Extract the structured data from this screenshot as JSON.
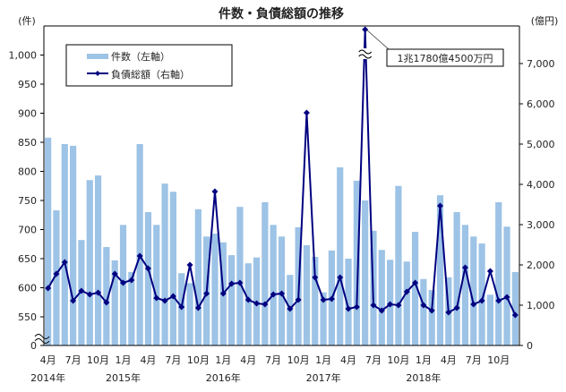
{
  "chart_data": {
    "type": "bar+line",
    "title": "件数・負債総額の推移",
    "left_axis_unit": "(件)",
    "right_axis_unit": "(億円)",
    "left_axis": {
      "ticks": [
        "0",
        "550",
        "600",
        "650",
        "700",
        "750",
        "800",
        "850",
        "900",
        "950",
        "1,000"
      ],
      "ylim": [
        550,
        1050
      ],
      "break": true
    },
    "right_axis": {
      "ticks": [
        "0",
        "1,000",
        "2,000",
        "3,000",
        "4,000",
        "5,000",
        "6,000",
        "7,000"
      ],
      "ylim": [
        0,
        7900
      ]
    },
    "legend": {
      "placement": "top-left",
      "entries": [
        "件数（左軸）",
        "負債総額（右軸）"
      ]
    },
    "annotation": "1兆1780億4500万円",
    "x_tick_labels": [
      "4月",
      "7月",
      "10月",
      "1月",
      "4月",
      "7月",
      "10月",
      "1月",
      "4月",
      "7月",
      "10月",
      "1月",
      "4月",
      "7月",
      "10月",
      "1月",
      "4月",
      "7月",
      "10月"
    ],
    "year_labels": [
      "2014年",
      "2015年",
      "2016年",
      "2017年",
      "2018年"
    ],
    "months": [
      "2014-04",
      "2014-05",
      "2014-06",
      "2014-07",
      "2014-08",
      "2014-09",
      "2014-10",
      "2014-11",
      "2014-12",
      "2015-01",
      "2015-02",
      "2015-03",
      "2015-04",
      "2015-05",
      "2015-06",
      "2015-07",
      "2015-08",
      "2015-09",
      "2015-10",
      "2015-11",
      "2015-12",
      "2016-01",
      "2016-02",
      "2016-03",
      "2016-04",
      "2016-05",
      "2016-06",
      "2016-07",
      "2016-08",
      "2016-09",
      "2016-10",
      "2016-11",
      "2016-12",
      "2017-01",
      "2017-02",
      "2017-03",
      "2017-04",
      "2017-05",
      "2017-06",
      "2017-07",
      "2017-08",
      "2017-09",
      "2017-10",
      "2017-11",
      "2017-12",
      "2018-01",
      "2018-02",
      "2018-03",
      "2018-04",
      "2018-05",
      "2018-06",
      "2018-07",
      "2018-08",
      "2018-09",
      "2018-10",
      "2018-11",
      "2018-12"
    ],
    "series": [
      {
        "name": "件数（左軸）",
        "type": "bar",
        "color": "#9dc3e6",
        "values": [
          858,
          733,
          847,
          844,
          682,
          785,
          793,
          670,
          647,
          708,
          627,
          847,
          730,
          708,
          779,
          765,
          625,
          608,
          735,
          688,
          693,
          678,
          656,
          739,
          642,
          652,
          747,
          708,
          688,
          622,
          704,
          673,
          653,
          592,
          664,
          807,
          650,
          784,
          750,
          698,
          665,
          648,
          775,
          645,
          696,
          615,
          596,
          759,
          618,
          730,
          708,
          688,
          676,
          588,
          747,
          705,
          627
        ]
      },
      {
        "name": "負債総額（右軸）",
        "type": "line",
        "color": "#000080",
        "values": [
          1422,
          1778,
          2067,
          1111,
          1356,
          1267,
          1311,
          1067,
          1778,
          1556,
          1622,
          2222,
          1911,
          1178,
          1111,
          1222,
          956,
          2000,
          933,
          1289,
          3822,
          1289,
          1533,
          1556,
          1133,
          1044,
          1022,
          1267,
          1289,
          911,
          1133,
          5778,
          1689,
          1133,
          1156,
          1689,
          911,
          956,
          11780,
          1000,
          867,
          1022,
          1000,
          1333,
          1556,
          1000,
          867,
          3467,
          822,
          933,
          1933,
          1022,
          1111,
          1844,
          1111,
          1200,
          756
        ]
      }
    ]
  }
}
